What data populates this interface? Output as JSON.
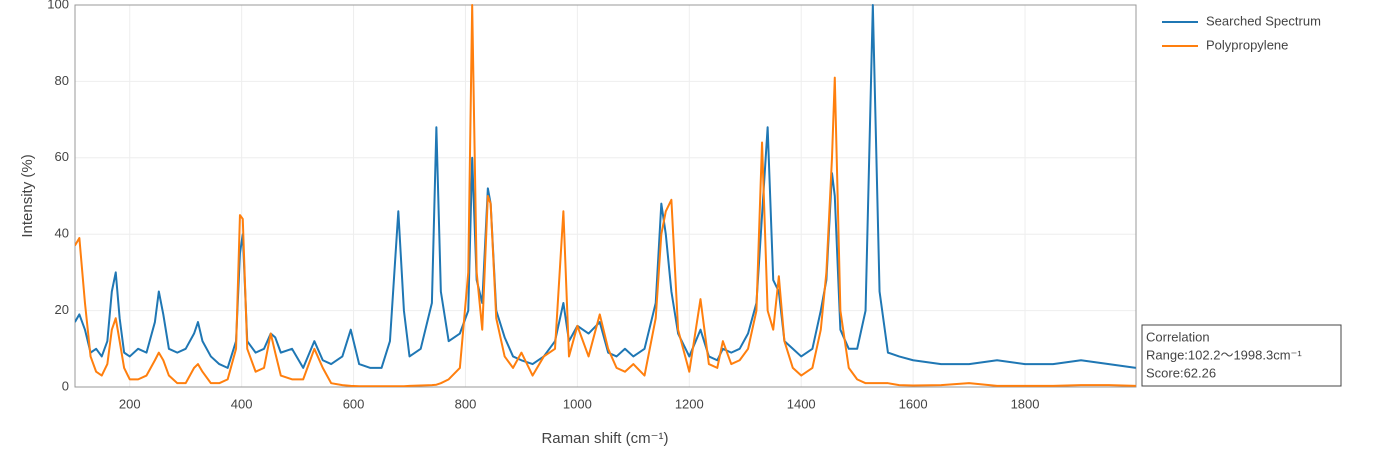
{
  "chart_data": {
    "type": "line",
    "x_label": "Raman shift (cm⁻¹)",
    "y_label": "Intensity (%)",
    "xlim": [
      102.2,
      1998.3
    ],
    "ylim": [
      0,
      100
    ],
    "xticks": [
      200,
      400,
      600,
      800,
      1000,
      1200,
      1400,
      1600,
      1800
    ],
    "yticks": [
      0,
      20,
      40,
      60,
      80,
      100
    ],
    "grid": true,
    "legend": "right",
    "annotation": [
      "Correlation",
      "Range:102.2～1998.3cm⁻¹",
      "Score:62.26"
    ],
    "x": [
      102,
      110,
      120,
      130,
      140,
      150,
      160,
      168,
      175,
      182,
      190,
      200,
      215,
      230,
      245,
      252,
      260,
      270,
      285,
      300,
      315,
      322,
      330,
      345,
      360,
      375,
      390,
      397,
      402,
      410,
      425,
      440,
      452,
      460,
      470,
      490,
      510,
      530,
      545,
      560,
      580,
      595,
      610,
      630,
      650,
      665,
      680,
      690,
      700,
      720,
      740,
      748,
      756,
      770,
      790,
      805,
      812,
      820,
      830,
      840,
      845,
      855,
      870,
      885,
      900,
      920,
      940,
      960,
      975,
      985,
      1000,
      1020,
      1040,
      1055,
      1070,
      1085,
      1100,
      1120,
      1140,
      1150,
      1158,
      1168,
      1180,
      1200,
      1220,
      1235,
      1250,
      1260,
      1275,
      1290,
      1305,
      1320,
      1330,
      1340,
      1350,
      1360,
      1370,
      1385,
      1400,
      1420,
      1435,
      1445,
      1455,
      1460,
      1470,
      1485,
      1500,
      1515,
      1528,
      1540,
      1555,
      1575,
      1600,
      1650,
      1700,
      1750,
      1800,
      1850,
      1900,
      1950,
      1998
    ],
    "series": [
      {
        "name": "Searched Spectrum",
        "color": "#1f77b4",
        "values": [
          17,
          19,
          15,
          9,
          10,
          8,
          12,
          25,
          30,
          18,
          9,
          8,
          10,
          9,
          17,
          25,
          19,
          10,
          9,
          10,
          14,
          17,
          12,
          8,
          6,
          5,
          12,
          35,
          40,
          12,
          9,
          10,
          14,
          13,
          9,
          10,
          5,
          12,
          7,
          6,
          8,
          15,
          6,
          5,
          5,
          12,
          46,
          20,
          8,
          10,
          22,
          68,
          25,
          12,
          14,
          20,
          60,
          28,
          22,
          52,
          48,
          20,
          13,
          8,
          7,
          6,
          8,
          12,
          22,
          12,
          16,
          14,
          17,
          9,
          8,
          10,
          8,
          10,
          22,
          48,
          40,
          25,
          14,
          8,
          15,
          8,
          7,
          10,
          9,
          10,
          14,
          22,
          45,
          68,
          28,
          25,
          12,
          10,
          8,
          10,
          20,
          28,
          56,
          50,
          15,
          10,
          10,
          20,
          100,
          25,
          9,
          8,
          7,
          6,
          6,
          7,
          6,
          6,
          7,
          6,
          5
        ]
      },
      {
        "name": "Polypropylene",
        "color": "#ff7f0e",
        "values": [
          37,
          39,
          22,
          8,
          4,
          3,
          6,
          15,
          18,
          12,
          5,
          2,
          2,
          3,
          7,
          9,
          7,
          3,
          1,
          1,
          5,
          6,
          4,
          1,
          1,
          2,
          10,
          45,
          44,
          10,
          4,
          5,
          14,
          9,
          3,
          2,
          2,
          10,
          5,
          1,
          0.5,
          0.3,
          0.2,
          0.2,
          0.2,
          0.2,
          0.2,
          0.2,
          0.3,
          0.4,
          0.5,
          0.6,
          1,
          2,
          5,
          30,
          100,
          30,
          15,
          50,
          48,
          18,
          8,
          5,
          9,
          3,
          8,
          10,
          46,
          8,
          16,
          8,
          19,
          10,
          5,
          4,
          6,
          3,
          18,
          40,
          46,
          49,
          15,
          4,
          23,
          6,
          5,
          12,
          6,
          7,
          10,
          20,
          64,
          20,
          15,
          29,
          12,
          5,
          3,
          5,
          15,
          30,
          60,
          81,
          20,
          5,
          2,
          1,
          1,
          1,
          1,
          0.5,
          0.4,
          0.5,
          1,
          0.3,
          0.3,
          0.3,
          0.5,
          0.5,
          0.3
        ]
      }
    ]
  }
}
